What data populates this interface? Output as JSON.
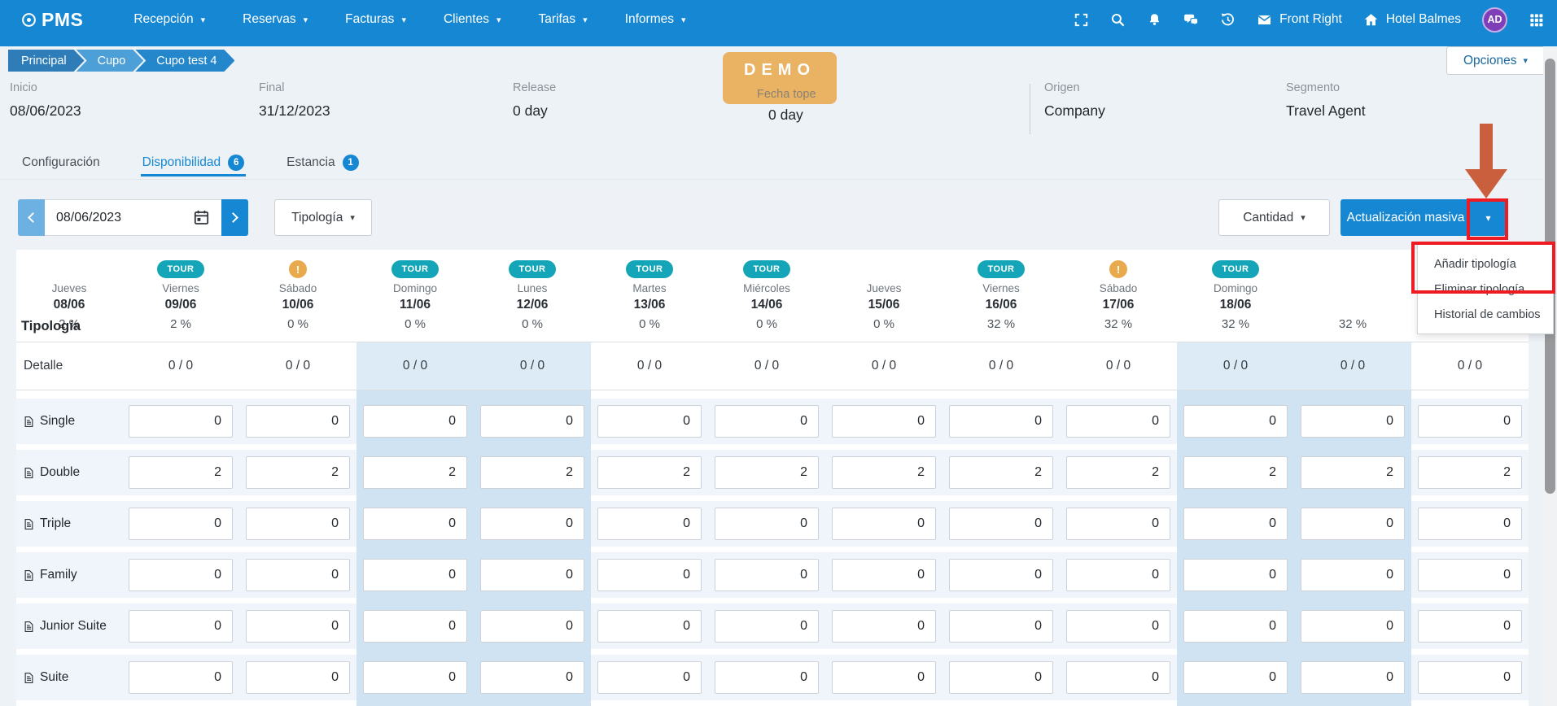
{
  "navbar": {
    "logo_text": "PMS",
    "menus": [
      "Recepción",
      "Reservas",
      "Facturas",
      "Clientes",
      "Tarifas",
      "Informes"
    ],
    "front_office_label": "Front Right",
    "hotel_label": "Hotel Balmes",
    "avatar_initials": "AD"
  },
  "breadcrumb": {
    "items": [
      "Principal",
      "Cupo",
      "Cupo test 4"
    ]
  },
  "options_button_label": "Opciones",
  "demo_badge_label": "DEMO",
  "info_fields": [
    {
      "label": "Inicio",
      "value": "08/06/2023"
    },
    {
      "label": "Final",
      "value": "31/12/2023"
    },
    {
      "label": "Release",
      "value": "0 day"
    },
    {
      "label": "Fecha tope",
      "value": "0 day"
    },
    {
      "label": "Origen",
      "value": "Company"
    },
    {
      "label": "Segmento",
      "value": "Travel Agent"
    }
  ],
  "tabs": [
    {
      "label": "Configuración",
      "badge": "",
      "active": false
    },
    {
      "label": "Disponibilidad",
      "badge": "6",
      "active": true
    },
    {
      "label": "Estancia",
      "badge": "1",
      "active": false
    }
  ],
  "toolbar": {
    "date_value": "08/06/2023",
    "tipologia_label": "Tipología",
    "cantidad_label": "Cantidad",
    "bulk_update_label": "Actualización masiva"
  },
  "context_menu": {
    "items": [
      "Añadir tipología",
      "Eliminar tipología",
      "Historial de cambios"
    ]
  },
  "table": {
    "header_label": "Tipología",
    "tour_badge_text": "TOUR",
    "warning_badge_text": "!",
    "detail_label": "Detalle",
    "detail_value": "0 / 0",
    "columns": [
      {
        "badge": "none",
        "day": "Jueves",
        "date": "08/06",
        "pct": "2 %",
        "weekend": false
      },
      {
        "badge": "tour",
        "day": "Viernes",
        "date": "09/06",
        "pct": "2 %",
        "weekend": false
      },
      {
        "badge": "warning",
        "day": "Sábado",
        "date": "10/06",
        "pct": "0 %",
        "weekend": true
      },
      {
        "badge": "tour",
        "day": "Domingo",
        "date": "11/06",
        "pct": "0 %",
        "weekend": true
      },
      {
        "badge": "tour",
        "day": "Lunes",
        "date": "12/06",
        "pct": "0 %",
        "weekend": false
      },
      {
        "badge": "tour",
        "day": "Martes",
        "date": "13/06",
        "pct": "0 %",
        "weekend": false
      },
      {
        "badge": "tour",
        "day": "Miércoles",
        "date": "14/06",
        "pct": "0 %",
        "weekend": false
      },
      {
        "badge": "none",
        "day": "Jueves",
        "date": "15/06",
        "pct": "0 %",
        "weekend": false
      },
      {
        "badge": "tour",
        "day": "Viernes",
        "date": "16/06",
        "pct": "32 %",
        "weekend": false
      },
      {
        "badge": "warning",
        "day": "Sábado",
        "date": "17/06",
        "pct": "32 %",
        "weekend": true
      },
      {
        "badge": "tour",
        "day": "Domingo",
        "date": "18/06",
        "pct": "32 %",
        "weekend": true
      },
      {
        "badge": "none",
        "day": "",
        "date": "",
        "pct": "32 %",
        "weekend": false
      }
    ],
    "rows": [
      {
        "label": "Single",
        "values": [
          "0",
          "0",
          "0",
          "0",
          "0",
          "0",
          "0",
          "0",
          "0",
          "0",
          "0",
          "0"
        ]
      },
      {
        "label": "Double",
        "values": [
          "2",
          "2",
          "2",
          "2",
          "2",
          "2",
          "2",
          "2",
          "2",
          "2",
          "2",
          "2"
        ]
      },
      {
        "label": "Triple",
        "values": [
          "0",
          "0",
          "0",
          "0",
          "0",
          "0",
          "0",
          "0",
          "0",
          "0",
          "0",
          "0"
        ]
      },
      {
        "label": "Family",
        "values": [
          "0",
          "0",
          "0",
          "0",
          "0",
          "0",
          "0",
          "0",
          "0",
          "0",
          "0",
          "0"
        ]
      },
      {
        "label": "Junior Suite",
        "values": [
          "0",
          "0",
          "0",
          "0",
          "0",
          "0",
          "0",
          "0",
          "0",
          "0",
          "0",
          "0"
        ]
      },
      {
        "label": "Suite",
        "values": [
          "0",
          "0",
          "0",
          "0",
          "0",
          "0",
          "0",
          "0",
          "0",
          "0",
          "0",
          "0"
        ]
      }
    ]
  },
  "colors": {
    "accent": "#1688d3",
    "tour_badge": "#14a5b8",
    "warning_badge": "#e9a94d",
    "demo_badge": "#eab263",
    "annotation_red": "#ee1b22",
    "annotation_arrow": "#c95f3d",
    "weekend_band": "#cfe3f2"
  }
}
